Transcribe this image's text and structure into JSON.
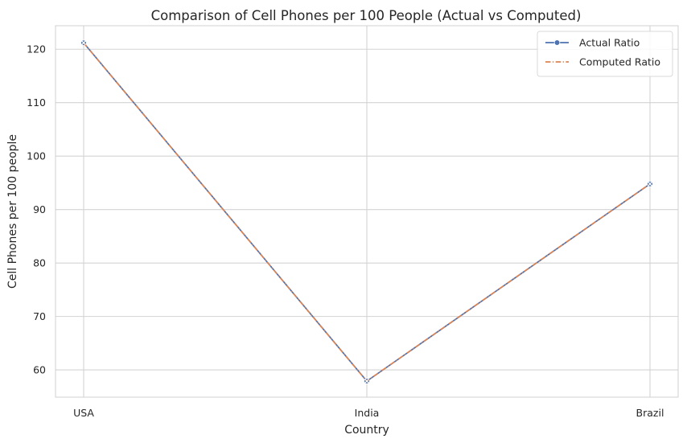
{
  "chart_data": {
    "type": "line",
    "title": "Comparison of Cell Phones per 100 People (Actual vs Computed)",
    "xlabel": "Country",
    "ylabel": "Cell Phones per 100 people",
    "categories": [
      "USA",
      "India",
      "Brazil"
    ],
    "ylim": [
      54.9,
      124.4
    ],
    "yticks": [
      60,
      70,
      80,
      90,
      100,
      110,
      120
    ],
    "grid": true,
    "legend_position": "top-right",
    "series": [
      {
        "name": "Actual Ratio",
        "values": [
          121.2,
          57.9,
          94.8
        ],
        "color": "#4c72b0",
        "line_style": "solid",
        "marker": "circle"
      },
      {
        "name": "Computed Ratio",
        "values": [
          121.2,
          57.9,
          94.8
        ],
        "color": "#dd8452",
        "line_style": "dash-dot",
        "marker": "x"
      }
    ]
  }
}
